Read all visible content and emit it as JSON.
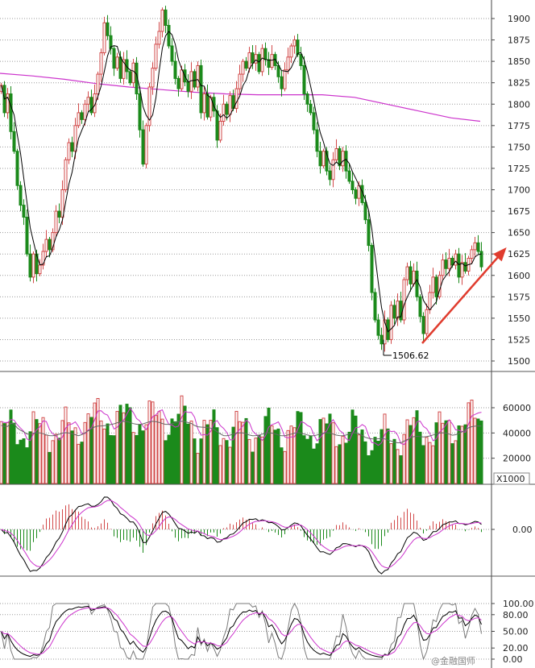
{
  "chart_data": [
    {
      "type": "candlestick",
      "panel": "price",
      "y_ticks": [
        "1900",
        "1875",
        "1850",
        "1825",
        "1800",
        "1775",
        "1750",
        "1725",
        "1700",
        "1675",
        "1650",
        "1625",
        "1600",
        "1575",
        "1550",
        "1525",
        "1500"
      ],
      "ylim": [
        1492,
        1916
      ],
      "grid": true,
      "annotation_low": "1506.62",
      "colors": {
        "up": "#d24a4a",
        "down": "#1b8a1b",
        "ma_short": "#000000",
        "ma_long": "#cc33cc",
        "arrow": "#e03c2e"
      },
      "ma_long": [
        [
          0,
          1836
        ],
        [
          40,
          1833
        ],
        [
          80,
          1829
        ],
        [
          120,
          1824
        ],
        [
          160,
          1820
        ],
        [
          200,
          1817
        ],
        [
          240,
          1814
        ],
        [
          280,
          1812
        ],
        [
          320,
          1811
        ],
        [
          360,
          1811
        ],
        [
          400,
          1811
        ],
        [
          440,
          1808
        ],
        [
          480,
          1800
        ],
        [
          520,
          1792
        ],
        [
          560,
          1784
        ],
        [
          596,
          1780
        ]
      ],
      "candles_spec": [
        [
          0,
          1815,
          1822
        ],
        [
          4,
          1822,
          1790
        ],
        [
          8,
          1790,
          1812
        ],
        [
          12,
          1812,
          1768
        ],
        [
          16,
          1768,
          1745
        ],
        [
          20,
          1745,
          1705
        ],
        [
          24,
          1705,
          1682
        ],
        [
          28,
          1682,
          1668
        ],
        [
          32,
          1668,
          1625
        ],
        [
          36,
          1625,
          1598
        ],
        [
          40,
          1598,
          1625
        ],
        [
          44,
          1625,
          1602
        ],
        [
          48,
          1602,
          1612
        ],
        [
          52,
          1612,
          1628
        ],
        [
          56,
          1628,
          1642
        ],
        [
          60,
          1642,
          1630
        ],
        [
          64,
          1630,
          1650
        ],
        [
          68,
          1650,
          1675
        ],
        [
          72,
          1675,
          1668
        ],
        [
          76,
          1668,
          1700
        ],
        [
          80,
          1700,
          1735
        ],
        [
          84,
          1735,
          1755
        ],
        [
          88,
          1755,
          1745
        ],
        [
          92,
          1745,
          1775
        ],
        [
          96,
          1775,
          1790
        ],
        [
          100,
          1790,
          1782
        ],
        [
          104,
          1782,
          1800
        ],
        [
          108,
          1800,
          1808
        ],
        [
          112,
          1808,
          1790
        ],
        [
          116,
          1790,
          1812
        ],
        [
          120,
          1812,
          1835
        ],
        [
          124,
          1835,
          1860
        ],
        [
          128,
          1860,
          1895
        ],
        [
          132,
          1895,
          1880
        ],
        [
          136,
          1880,
          1865
        ],
        [
          140,
          1865,
          1842
        ],
        [
          144,
          1842,
          1855
        ],
        [
          148,
          1855,
          1830
        ],
        [
          152,
          1830,
          1852
        ],
        [
          156,
          1852,
          1838
        ],
        [
          160,
          1838,
          1825
        ],
        [
          164,
          1825,
          1848
        ],
        [
          168,
          1848,
          1812
        ],
        [
          172,
          1812,
          1770
        ],
        [
          176,
          1770,
          1730
        ],
        [
          180,
          1730,
          1775
        ],
        [
          184,
          1775,
          1820
        ],
        [
          188,
          1820,
          1842
        ],
        [
          192,
          1842,
          1870
        ],
        [
          196,
          1870,
          1885
        ],
        [
          200,
          1885,
          1910
        ],
        [
          204,
          1910,
          1892
        ],
        [
          208,
          1892,
          1868
        ],
        [
          212,
          1868,
          1850
        ],
        [
          216,
          1850,
          1830
        ],
        [
          220,
          1830,
          1818
        ],
        [
          224,
          1818,
          1840
        ],
        [
          228,
          1840,
          1826
        ],
        [
          232,
          1826,
          1815
        ],
        [
          236,
          1815,
          1838
        ],
        [
          240,
          1838,
          1820
        ],
        [
          244,
          1820,
          1845
        ],
        [
          248,
          1845,
          1790
        ],
        [
          252,
          1790,
          1812
        ],
        [
          256,
          1812,
          1785
        ],
        [
          260,
          1785,
          1808
        ],
        [
          264,
          1808,
          1792
        ],
        [
          268,
          1792,
          1758
        ],
        [
          272,
          1758,
          1780
        ],
        [
          276,
          1780,
          1800
        ],
        [
          280,
          1800,
          1788
        ],
        [
          284,
          1788,
          1810
        ],
        [
          288,
          1810,
          1795
        ],
        [
          292,
          1795,
          1818
        ],
        [
          296,
          1818,
          1835
        ],
        [
          300,
          1835,
          1850
        ],
        [
          304,
          1850,
          1842
        ],
        [
          308,
          1842,
          1860
        ],
        [
          312,
          1860,
          1848
        ],
        [
          316,
          1848,
          1858
        ],
        [
          320,
          1858,
          1838
        ],
        [
          324,
          1838,
          1865
        ],
        [
          328,
          1865,
          1852
        ],
        [
          332,
          1852,
          1843
        ],
        [
          336,
          1843,
          1858
        ],
        [
          340,
          1858,
          1845
        ],
        [
          344,
          1845,
          1832
        ],
        [
          348,
          1832,
          1818
        ],
        [
          352,
          1818,
          1840
        ],
        [
          356,
          1840,
          1855
        ],
        [
          360,
          1855,
          1868
        ],
        [
          364,
          1868,
          1875
        ],
        [
          368,
          1875,
          1858
        ],
        [
          372,
          1858,
          1845
        ],
        [
          376,
          1845,
          1812
        ],
        [
          380,
          1812,
          1800
        ],
        [
          384,
          1800,
          1790
        ],
        [
          388,
          1790,
          1770
        ],
        [
          392,
          1770,
          1745
        ],
        [
          396,
          1745,
          1728
        ],
        [
          400,
          1728,
          1745
        ],
        [
          404,
          1745,
          1722
        ],
        [
          408,
          1722,
          1712
        ],
        [
          412,
          1712,
          1735
        ],
        [
          416,
          1735,
          1748
        ],
        [
          420,
          1748,
          1728
        ],
        [
          424,
          1728,
          1745
        ],
        [
          428,
          1745,
          1722
        ],
        [
          432,
          1722,
          1710
        ],
        [
          436,
          1710,
          1700
        ],
        [
          440,
          1700,
          1690
        ],
        [
          444,
          1690,
          1705
        ],
        [
          448,
          1705,
          1685
        ],
        [
          452,
          1685,
          1665
        ],
        [
          456,
          1665,
          1635
        ],
        [
          460,
          1635,
          1580
        ],
        [
          464,
          1580,
          1548
        ],
        [
          468,
          1548,
          1530
        ],
        [
          472,
          1530,
          1520
        ],
        [
          476,
          1520,
          1548
        ],
        [
          480,
          1548,
          1525
        ],
        [
          484,
          1525,
          1565
        ],
        [
          488,
          1565,
          1550
        ],
        [
          492,
          1550,
          1570
        ],
        [
          496,
          1570,
          1548
        ],
        [
          500,
          1548,
          1595
        ],
        [
          504,
          1595,
          1610
        ],
        [
          508,
          1610,
          1590
        ],
        [
          512,
          1590,
          1605
        ],
        [
          516,
          1605,
          1575
        ],
        [
          520,
          1575,
          1552
        ],
        [
          524,
          1552,
          1532
        ],
        [
          528,
          1532,
          1560
        ],
        [
          532,
          1560,
          1580
        ],
        [
          536,
          1580,
          1598
        ],
        [
          540,
          1598,
          1575
        ],
        [
          544,
          1575,
          1600
        ],
        [
          548,
          1600,
          1618
        ],
        [
          552,
          1618,
          1608
        ],
        [
          556,
          1608,
          1620
        ],
        [
          560,
          1620,
          1612
        ],
        [
          564,
          1612,
          1625
        ],
        [
          568,
          1625,
          1598
        ],
        [
          572,
          1598,
          1615
        ],
        [
          576,
          1615,
          1605
        ],
        [
          580,
          1605,
          1620
        ],
        [
          584,
          1620,
          1630
        ],
        [
          588,
          1630,
          1638
        ],
        [
          592,
          1638,
          1628
        ],
        [
          596,
          1628,
          1610
        ]
      ]
    },
    {
      "type": "bar",
      "panel": "volume",
      "y_ticks": [
        "60000",
        "40000",
        "20000"
      ],
      "unit_label": "X1000",
      "ylim": [
        0,
        75000
      ],
      "grid": true
    },
    {
      "type": "line",
      "panel": "macd",
      "y_ticks": [
        "0.00"
      ],
      "grid": true
    },
    {
      "type": "line",
      "panel": "kdj",
      "y_ticks": [
        "100.00",
        "80.00",
        "50.00",
        "20.00",
        "0.00"
      ],
      "ylim": [
        0,
        100
      ],
      "grid": true
    }
  ],
  "watermark": "@金融国师"
}
